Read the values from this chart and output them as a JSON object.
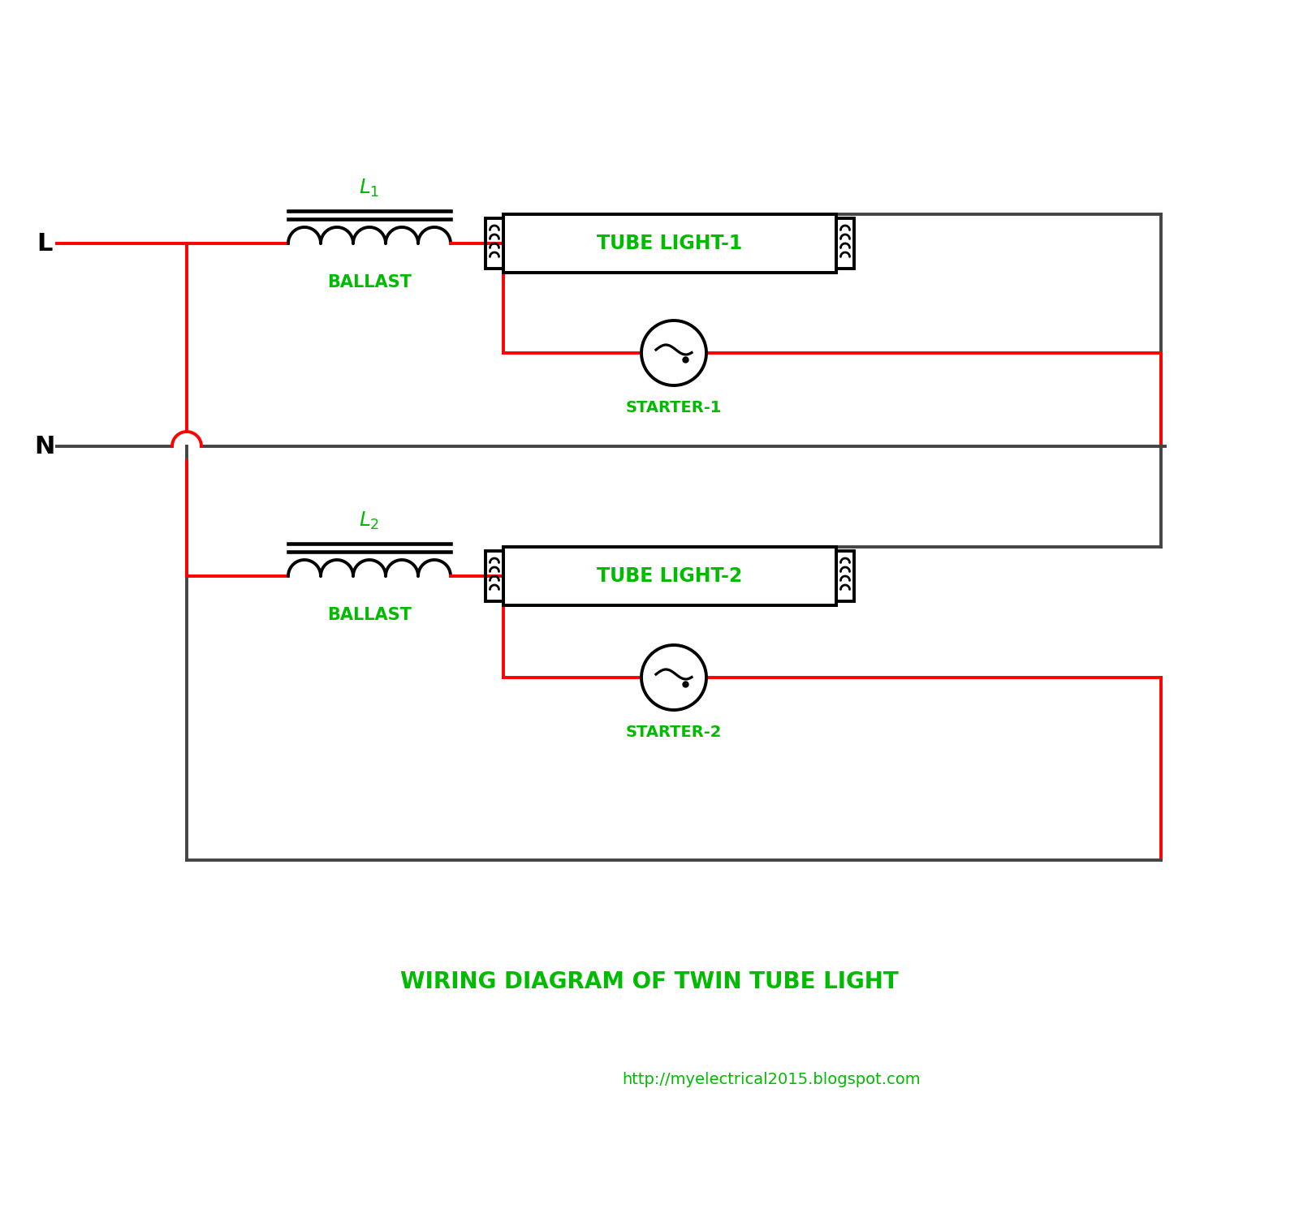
{
  "title": "WIRING DIAGRAM OF TWIN TUBE LIGHT",
  "subtitle": "http://myelectrical2015.blogspot.com",
  "bg_color": "#FFFFFF",
  "wire_red": "#FF0000",
  "wire_black": "#000000",
  "wire_gray": "#444444",
  "label_green": "#00BB00",
  "tube1_label": "TUBE LIGHT-1",
  "tube2_label": "TUBE LIGHT-2",
  "starter1_label": "STARTER-1",
  "starter2_label": "STARTER-2",
  "ballast_label": "BALLAST",
  "L_label": "L",
  "N_label": "N",
  "L1_subscript": "1",
  "L2_subscript": "2"
}
